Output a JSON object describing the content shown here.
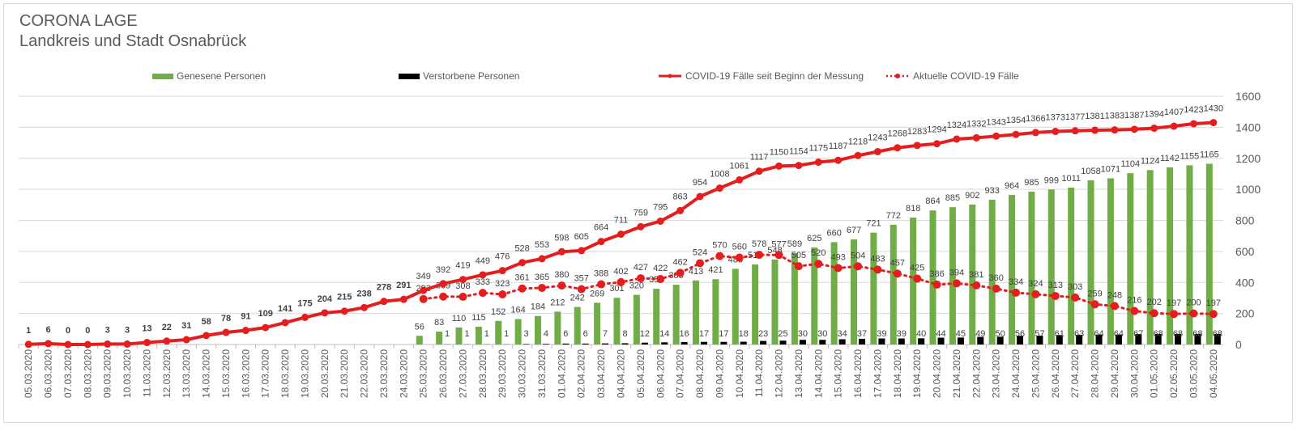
{
  "chart_data": {
    "type": "bar+line",
    "title": "CORONA LAGE",
    "subtitle": "Landkreis und Stadt Osnabrück",
    "ylim": [
      0,
      1600
    ],
    "yticks": [
      0,
      200,
      400,
      600,
      800,
      1000,
      1200,
      1400,
      1600
    ],
    "y_axis_side": "right",
    "grid": true,
    "legend_position": "top",
    "categories": [
      "05.03.2020",
      "06.03.2020",
      "07.03.2020",
      "08.03.2020",
      "09.03.2020",
      "10.03.2020",
      "11.03.2020",
      "12.03.2020",
      "13.03.2020",
      "14.03.2020",
      "15.03.2020",
      "16.03.2020",
      "17.03.2020",
      "18.03.2020",
      "19.03.2020",
      "20.03.2020",
      "21.03.2020",
      "22.03.2020",
      "23.03.2020",
      "24.03.2020",
      "25.03.2020",
      "26.03.2020",
      "27.03.2020",
      "28.03.2020",
      "29.03.2020",
      "30.03.2020",
      "31.03.2020",
      "01.04.2020",
      "02.04.2020",
      "03.04.2020",
      "04.04.2020",
      "05.04.2020",
      "06.04.2020",
      "07.04.2020",
      "08.04.2020",
      "09.04.2020",
      "10.04.2020",
      "11.04.2020",
      "12.04.2020",
      "13.04.2020",
      "14.04.2020",
      "15.04.2020",
      "16.04.2020",
      "17.04.2020",
      "18.04.2020",
      "19.04.2020",
      "20.04.2020",
      "21.04.2020",
      "22.04.2020",
      "23.04.2020",
      "24.04.2020",
      "25.04.2020",
      "26.04.2020",
      "27.04.2020",
      "28.04.2020",
      "29.04.2020",
      "30.04.2020",
      "01.05.2020",
      "02.05.2020",
      "03.05.2020",
      "04.05.2020"
    ],
    "series": [
      {
        "name": "Genesene Personen",
        "type": "bar",
        "color": "#70ad47",
        "values": [
          null,
          null,
          null,
          null,
          null,
          null,
          null,
          null,
          null,
          null,
          null,
          null,
          null,
          null,
          null,
          null,
          null,
          null,
          null,
          null,
          56,
          83,
          110,
          115,
          152,
          164,
          184,
          212,
          242,
          269,
          301,
          320,
          359,
          385,
          413,
          421,
          488,
          516,
          548,
          589,
          625,
          660,
          677,
          721,
          772,
          818,
          864,
          885,
          902,
          933,
          964,
          985,
          999,
          1011,
          1058,
          1071,
          1104,
          1124,
          1142,
          1155,
          1165
        ]
      },
      {
        "name": "Verstorbene Personen",
        "type": "bar",
        "color": "#000000",
        "values": [
          null,
          null,
          null,
          null,
          null,
          null,
          null,
          null,
          null,
          null,
          null,
          null,
          null,
          null,
          null,
          null,
          null,
          null,
          null,
          null,
          null,
          1,
          1,
          1,
          1,
          3,
          4,
          6,
          6,
          7,
          8,
          12,
          14,
          16,
          17,
          17,
          18,
          23,
          25,
          30,
          30,
          34,
          37,
          39,
          39,
          40,
          44,
          45,
          49,
          50,
          56,
          57,
          61,
          63,
          64,
          64,
          67,
          68,
          68,
          68,
          68
        ]
      },
      {
        "name": "COVID-19 Fälle seit Beginn der Messung",
        "type": "line",
        "color": "#e41e1e",
        "values": [
          1,
          6,
          0,
          0,
          3,
          3,
          13,
          22,
          31,
          58,
          78,
          91,
          109,
          141,
          175,
          204,
          215,
          238,
          278,
          291,
          349,
          392,
          419,
          449,
          476,
          528,
          553,
          598,
          605,
          664,
          711,
          759,
          795,
          863,
          954,
          1008,
          1061,
          1117,
          1150,
          1154,
          1175,
          1187,
          1218,
          1243,
          1268,
          1283,
          1294,
          1324,
          1332,
          1343,
          1354,
          1366,
          1373,
          1377,
          1381,
          1383,
          1387,
          1394,
          1407,
          1423,
          1430
        ]
      },
      {
        "name": "Aktuelle COVID-19 Fälle",
        "type": "line-dotted",
        "color": "#e41e1e",
        "values": [
          null,
          null,
          null,
          null,
          null,
          null,
          null,
          null,
          null,
          null,
          null,
          null,
          null,
          null,
          null,
          null,
          null,
          null,
          null,
          null,
          293,
          309,
          308,
          333,
          323,
          361,
          365,
          380,
          357,
          388,
          402,
          427,
          422,
          462,
          524,
          570,
          560,
          578,
          577,
          505,
          520,
          493,
          504,
          483,
          457,
          425,
          386,
          394,
          381,
          360,
          334,
          324,
          313,
          303,
          259,
          248,
          216,
          202,
          197,
          200,
          197
        ]
      }
    ]
  }
}
